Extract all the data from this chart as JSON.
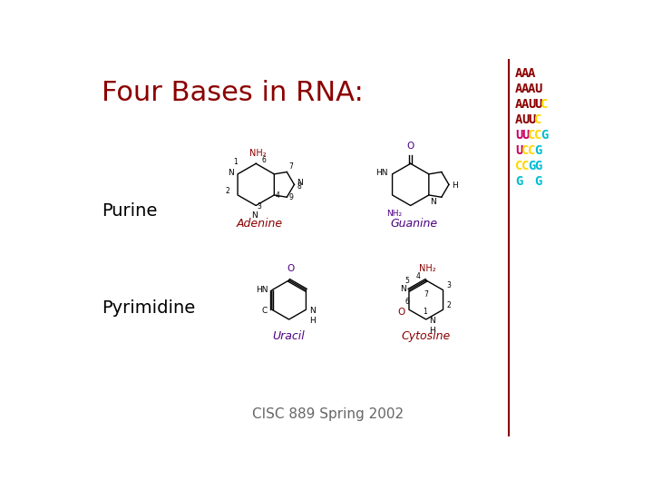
{
  "title": "Four Bases in RNA:",
  "title_color": "#8B0000",
  "title_fontsize": 22,
  "bg_color": "#FFFFFF",
  "purine_label": "Purine",
  "pyrimidine_label": "Pyrimidine",
  "label_color": "#000000",
  "label_fontsize": 14,
  "footer": "CISC 889 Spring 2002",
  "footer_color": "#666666",
  "footer_fontsize": 11,
  "adenine_label": "Adenine",
  "guanine_label": "Guanine",
  "uracil_label": "Uracil",
  "cytosine_label": "Cytosine",
  "adenine_color": "#8B0000",
  "guanine_color": "#4B0082",
  "uracil_color": "#4B0082",
  "cytosine_color": "#8B0000",
  "sidebar_line_color": "#8B0000",
  "mol_line_color": "#000000",
  "mol_lw": 1.0,
  "dna_text_lines": [
    {
      "chars": [
        {
          "c": "A",
          "col": "#8B0000"
        },
        {
          "c": "A",
          "col": "#8B0000"
        },
        {
          "c": "A",
          "col": "#8B0000"
        }
      ]
    },
    {
      "chars": [
        {
          "c": "A",
          "col": "#8B0000"
        },
        {
          "c": "A",
          "col": "#8B0000"
        },
        {
          "c": "A",
          "col": "#8B0000"
        },
        {
          "c": "U",
          "col": "#8B0000"
        }
      ]
    },
    {
      "chars": [
        {
          "c": "A",
          "col": "#8B0000"
        },
        {
          "c": "A",
          "col": "#8B0000"
        },
        {
          "c": "U",
          "col": "#8B0000"
        },
        {
          "c": "U",
          "col": "#8B0000"
        },
        {
          "c": "C",
          "col": "#FFD700"
        }
      ]
    },
    {
      "chars": [
        {
          "c": "A",
          "col": "#8B0000"
        },
        {
          "c": "U",
          "col": "#8B0000"
        },
        {
          "c": "U",
          "col": "#8B0000"
        },
        {
          "c": "C",
          "col": "#FFD700"
        }
      ]
    },
    {
      "chars": [
        {
          "c": "U",
          "col": "#CC0066"
        },
        {
          "c": "U",
          "col": "#CC0066"
        },
        {
          "c": "C",
          "col": "#FFD700"
        },
        {
          "c": "C",
          "col": "#FFD700"
        },
        {
          "c": "G",
          "col": "#00BCD4"
        }
      ]
    },
    {
      "chars": [
        {
          "c": "U",
          "col": "#CC0066"
        },
        {
          "c": "C",
          "col": "#FFD700"
        },
        {
          "c": "C",
          "col": "#FFD700"
        },
        {
          "c": "G",
          "col": "#00BCD4"
        }
      ]
    },
    {
      "chars": [
        {
          "c": "C",
          "col": "#FFD700"
        },
        {
          "c": "C",
          "col": "#FFD700"
        },
        {
          "c": "G",
          "col": "#00BCD4"
        },
        {
          "c": "G",
          "col": "#00BCD4"
        }
      ]
    },
    {
      "chars": [
        {
          "c": "G",
          "col": "#00BCD4"
        },
        {
          "c": " ",
          "col": "#FFFFFF"
        },
        {
          "c": " ",
          "col": "#FFFFFF"
        },
        {
          "c": "G",
          "col": "#00BCD4"
        }
      ]
    }
  ]
}
